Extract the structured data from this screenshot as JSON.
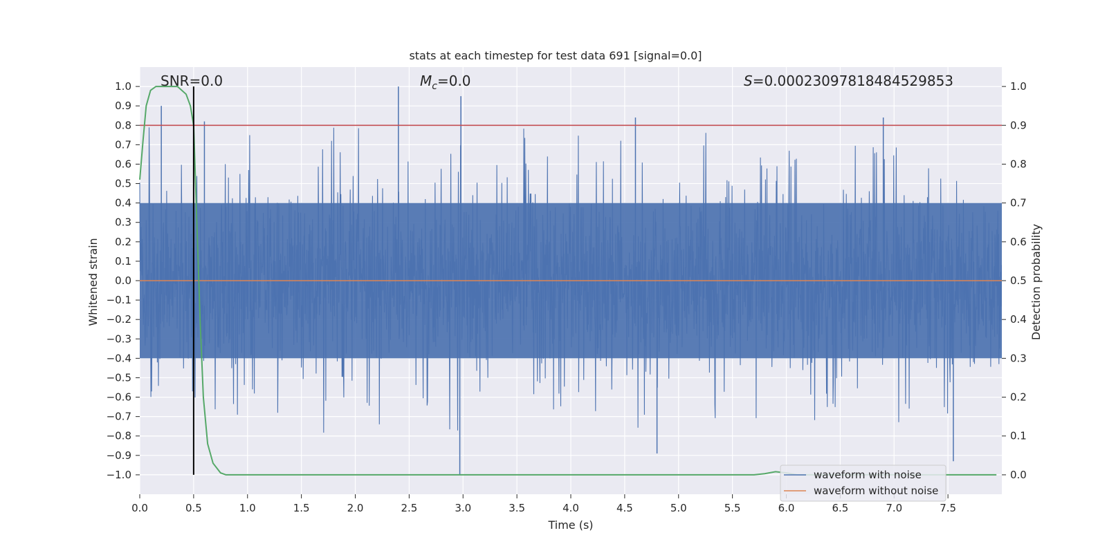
{
  "chart_data": {
    "type": "line",
    "title": "stats at each timestep for test data 691 [signal=0.0]",
    "xlabel": "Time (s)",
    "ylabel_left": "Whitened strain",
    "ylabel_right": "Detection probability",
    "xlim": [
      0.0,
      8.0
    ],
    "ylim_left": [
      -1.1,
      1.1
    ],
    "ylim_right": [
      -0.05,
      1.05
    ],
    "x_ticks": [
      "0.0",
      "0.5",
      "1.0",
      "1.5",
      "2.0",
      "2.5",
      "3.0",
      "3.5",
      "4.0",
      "4.5",
      "5.0",
      "5.5",
      "6.0",
      "6.5",
      "7.0",
      "7.5"
    ],
    "y_left_ticks": [
      "1.0",
      "0.9",
      "0.8",
      "0.7",
      "0.6",
      "0.5",
      "0.4",
      "0.3",
      "0.2",
      "0.1",
      "0.0",
      "−0.1",
      "−0.2",
      "−0.3",
      "−0.4",
      "−0.5",
      "−0.6",
      "−0.7",
      "−0.8",
      "−0.9",
      "−1.0"
    ],
    "y_right_ticks": [
      "1.0",
      "0.9",
      "0.8",
      "0.7",
      "0.6",
      "0.5",
      "0.4",
      "0.3",
      "0.2",
      "0.1",
      "0.0"
    ],
    "annotations": {
      "snr": "SNR=0.0",
      "mc": "Mc=0.0",
      "mc_symbol": "M",
      "mc_subscript": "c",
      "mc_value": "=0.0",
      "s": "S=0.00023097818484529853",
      "s_symbol": "S",
      "s_value": "=0.00023097818484529853"
    },
    "threshold_probability": 0.9,
    "marker_time": 0.5,
    "legend": {
      "position": "lower-right",
      "entries": [
        {
          "label": "waveform with noise",
          "color": "#4c72b0"
        },
        {
          "label": "waveform without noise",
          "color": "#dd8452"
        }
      ]
    },
    "series": [
      {
        "name": "waveform with noise",
        "color": "#4c72b0",
        "description_of_envelope": "dense noise, typical |strain| 0.3-0.6 with sporadic peaks",
        "notable_peaks": [
          {
            "t": 0.2,
            "v": 0.9
          },
          {
            "t": 0.6,
            "v": 0.82
          },
          {
            "t": 2.4,
            "v": 1.0
          },
          {
            "t": 2.98,
            "v": 0.95
          },
          {
            "t": 2.97,
            "v": -1.0
          },
          {
            "t": 4.6,
            "v": 0.84
          },
          {
            "t": 6.9,
            "v": 0.84
          },
          {
            "t": 7.55,
            "v": -0.93
          },
          {
            "t": 4.8,
            "v": -0.89
          }
        ]
      },
      {
        "name": "waveform without noise",
        "color": "#dd8452",
        "x": [
          0.0,
          8.0
        ],
        "y": [
          0.0,
          0.0
        ]
      },
      {
        "name": "detection probability",
        "color": "#55a868",
        "axis": "right",
        "x": [
          0.0,
          0.03,
          0.06,
          0.1,
          0.15,
          0.2,
          0.27,
          0.35,
          0.43,
          0.47,
          0.5,
          0.53,
          0.56,
          0.59,
          0.63,
          0.68,
          0.75,
          0.8,
          0.85,
          1.0,
          2.0,
          3.0,
          4.0,
          5.0,
          5.7,
          5.8,
          5.9,
          6.0,
          6.1,
          6.5,
          7.0,
          7.5,
          7.95
        ],
        "y": [
          0.76,
          0.86,
          0.95,
          0.99,
          1.0,
          1.0,
          1.0,
          1.0,
          0.98,
          0.95,
          0.9,
          0.65,
          0.4,
          0.2,
          0.08,
          0.03,
          0.005,
          0.0,
          0.0,
          0.0,
          0.0,
          0.0,
          0.0,
          0.0,
          0.0,
          0.003,
          0.008,
          0.005,
          0.0,
          0.0,
          0.0,
          0.0,
          0.0
        ]
      }
    ]
  }
}
